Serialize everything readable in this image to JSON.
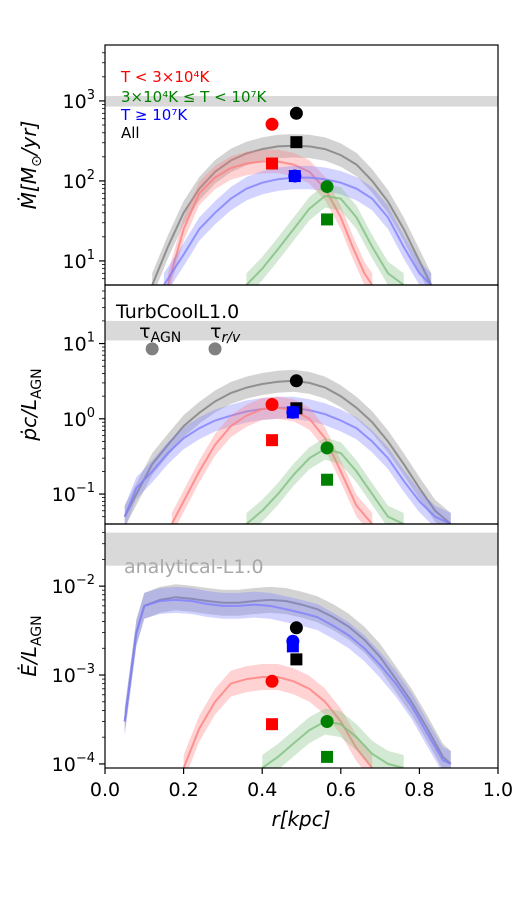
{
  "chart_data": {
    "type": "line",
    "shared_x": {
      "label": "r[kpc]",
      "lim": [
        0.0,
        1.0
      ],
      "ticks": [
        0.0,
        0.2,
        0.4,
        0.6,
        0.8,
        1.0
      ],
      "tick_labels": [
        "0.0",
        "0.2",
        "0.4",
        "0.6",
        "0.8",
        "1.0"
      ]
    },
    "colors": {
      "cold": "#ff0000",
      "warm": "#008000",
      "hot": "#0000ff",
      "all": "#000000",
      "band": "#d9d9d9",
      "marker_gray": "#808080"
    },
    "legend": {
      "placement": "top-left",
      "entries": [
        {
          "label": "T < 3×10⁴K",
          "color": "#ff0000"
        },
        {
          "label": "3×10⁴K ≤ T < 10⁷K",
          "color": "#008000"
        },
        {
          "label": "T ≥ 10⁷K",
          "color": "#0000ff"
        },
        {
          "label": "All",
          "color": "#000000"
        }
      ]
    },
    "panels": [
      {
        "ylabel": "Ṁ[M⊙/yr]",
        "yscale": "log",
        "ylim": [
          5,
          5000
        ],
        "ytick_labels": [
          {
            "base": "10",
            "exp": "1",
            "value": 10
          },
          {
            "base": "10",
            "exp": "2",
            "value": 100
          },
          {
            "base": "10",
            "exp": "3",
            "value": 1000
          }
        ],
        "band": [
          850,
          1150
        ],
        "series": [
          {
            "color": "#808080",
            "x": [
              0.12,
              0.16,
              0.2,
              0.24,
              0.28,
              0.32,
              0.36,
              0.4,
              0.44,
              0.48,
              0.52,
              0.56,
              0.6,
              0.64,
              0.68,
              0.72,
              0.76,
              0.8,
              0.83
            ],
            "y": [
              5,
              15,
              40,
              80,
              130,
              180,
              220,
              250,
              270,
              275,
              270,
              250,
              210,
              160,
              100,
              55,
              25,
              10,
              5
            ]
          },
          {
            "color": "#ff8080",
            "x": [
              0.16,
              0.2,
              0.24,
              0.28,
              0.32,
              0.36,
              0.4,
              0.44,
              0.48,
              0.52,
              0.56,
              0.6,
              0.63,
              0.66,
              0.68
            ],
            "y": [
              5,
              25,
              70,
              110,
              145,
              165,
              175,
              175,
              160,
              130,
              80,
              35,
              15,
              7,
              5
            ]
          },
          {
            "color": "#8080ff",
            "x": [
              0.15,
              0.2,
              0.24,
              0.28,
              0.32,
              0.36,
              0.4,
              0.44,
              0.48,
              0.52,
              0.56,
              0.6,
              0.64,
              0.68,
              0.72,
              0.76,
              0.8,
              0.83
            ],
            "y": [
              5,
              12,
              25,
              40,
              60,
              80,
              95,
              105,
              110,
              110,
              105,
              95,
              80,
              60,
              35,
              15,
              7,
              5
            ]
          },
          {
            "color": "#80c080",
            "x": [
              0.36,
              0.4,
              0.44,
              0.48,
              0.52,
              0.56,
              0.6,
              0.64,
              0.68,
              0.72,
              0.76
            ],
            "y": [
              5,
              8,
              14,
              25,
              45,
              65,
              60,
              35,
              15,
              7,
              5
            ]
          }
        ],
        "markers": [
          {
            "shape": "circle",
            "color": "#ff0000",
            "x": 0.425,
            "y": 510
          },
          {
            "shape": "square",
            "color": "#ff0000",
            "x": 0.425,
            "y": 165
          },
          {
            "shape": "circle",
            "color": "#000000",
            "x": 0.487,
            "y": 700
          },
          {
            "shape": "square",
            "color": "#000000",
            "x": 0.487,
            "y": 305
          },
          {
            "shape": "circle",
            "color": "#0000ff",
            "x": 0.483,
            "y": 115
          },
          {
            "shape": "square",
            "color": "#0000ff",
            "x": 0.483,
            "y": 115
          },
          {
            "shape": "circle",
            "color": "#008000",
            "x": 0.565,
            "y": 85
          },
          {
            "shape": "square",
            "color": "#008000",
            "x": 0.565,
            "y": 33
          }
        ]
      },
      {
        "ylabel": "ṗc/L_AGN",
        "yscale": "log",
        "ylim": [
          0.04,
          60
        ],
        "ytick_labels": [
          {
            "base": "10",
            "exp": "−1",
            "value": 0.1
          },
          {
            "base": "10",
            "exp": "0",
            "value": 1
          },
          {
            "base": "10",
            "exp": "1",
            "value": 10
          }
        ],
        "band": [
          11,
          20
        ],
        "annotation": "TurbCoolL1.0",
        "gray_markers": [
          {
            "label": "τ_AGN",
            "x": 0.12,
            "y": 8.5
          },
          {
            "label": "τ_r/v",
            "x": 0.28,
            "y": 8.5
          }
        ],
        "series": [
          {
            "color": "#808080",
            "x": [
              0.05,
              0.08,
              0.12,
              0.16,
              0.2,
              0.24,
              0.28,
              0.32,
              0.36,
              0.4,
              0.44,
              0.48,
              0.52,
              0.56,
              0.6,
              0.64,
              0.68,
              0.72,
              0.76,
              0.8,
              0.84,
              0.88
            ],
            "y": [
              0.05,
              0.1,
              0.25,
              0.45,
              0.8,
              1.2,
              1.7,
              2.2,
              2.6,
              2.9,
              3.1,
              3.2,
              3.0,
              2.6,
              2.0,
              1.4,
              0.9,
              0.5,
              0.25,
              0.12,
              0.06,
              0.04
            ]
          },
          {
            "color": "#8080ff",
            "x": [
              0.05,
              0.08,
              0.12,
              0.16,
              0.2,
              0.24,
              0.28,
              0.32,
              0.36,
              0.4,
              0.44,
              0.48,
              0.52,
              0.56,
              0.6,
              0.64,
              0.68,
              0.72,
              0.76,
              0.8,
              0.84,
              0.88
            ],
            "y": [
              0.05,
              0.12,
              0.2,
              0.35,
              0.55,
              0.75,
              0.95,
              1.1,
              1.25,
              1.35,
              1.4,
              1.4,
              1.3,
              1.15,
              0.95,
              0.75,
              0.5,
              0.3,
              0.15,
              0.08,
              0.05,
              0.04
            ]
          },
          {
            "color": "#ff8080",
            "x": [
              0.17,
              0.2,
              0.24,
              0.28,
              0.32,
              0.36,
              0.4,
              0.44,
              0.48,
              0.52,
              0.56,
              0.6,
              0.64,
              0.68
            ],
            "y": [
              0.04,
              0.08,
              0.2,
              0.45,
              0.8,
              1.1,
              1.35,
              1.4,
              1.3,
              1.0,
              0.55,
              0.2,
              0.07,
              0.04
            ]
          },
          {
            "color": "#80c080",
            "x": [
              0.36,
              0.4,
              0.44,
              0.48,
              0.52,
              0.56,
              0.6,
              0.64,
              0.68,
              0.72,
              0.76
            ],
            "y": [
              0.04,
              0.06,
              0.1,
              0.18,
              0.3,
              0.4,
              0.35,
              0.2,
              0.1,
              0.05,
              0.04
            ]
          }
        ],
        "markers": [
          {
            "shape": "circle",
            "color": "#ff0000",
            "x": 0.425,
            "y": 1.55
          },
          {
            "shape": "square",
            "color": "#ff0000",
            "x": 0.425,
            "y": 0.52
          },
          {
            "shape": "circle",
            "color": "#000000",
            "x": 0.487,
            "y": 3.2
          },
          {
            "shape": "square",
            "color": "#000000",
            "x": 0.487,
            "y": 1.38
          },
          {
            "shape": "circle",
            "color": "#0000ff",
            "x": 0.478,
            "y": 1.22
          },
          {
            "shape": "square",
            "color": "#0000ff",
            "x": 0.478,
            "y": 1.22
          },
          {
            "shape": "circle",
            "color": "#008000",
            "x": 0.565,
            "y": 0.41
          },
          {
            "shape": "square",
            "color": "#008000",
            "x": 0.565,
            "y": 0.155
          }
        ]
      },
      {
        "ylabel": "Ė/L_AGN",
        "yscale": "log",
        "ylim": [
          9e-05,
          0.05
        ],
        "ytick_labels": [
          {
            "base": "10",
            "exp": "−4",
            "value": 0.0001
          },
          {
            "base": "10",
            "exp": "−3",
            "value": 0.001
          },
          {
            "base": "10",
            "exp": "−2",
            "value": 0.01
          }
        ],
        "band": [
          0.017,
          0.04
        ],
        "annotation": "analytical-L1.0",
        "series": [
          {
            "color": "#808080",
            "x": [
              0.05,
              0.08,
              0.1,
              0.14,
              0.18,
              0.22,
              0.26,
              0.3,
              0.34,
              0.38,
              0.42,
              0.46,
              0.5,
              0.54,
              0.58,
              0.62,
              0.66,
              0.7,
              0.74,
              0.78,
              0.82,
              0.86,
              0.88
            ],
            "y": [
              0.0003,
              0.003,
              0.006,
              0.007,
              0.0075,
              0.0072,
              0.0068,
              0.0065,
              0.0065,
              0.0068,
              0.007,
              0.0068,
              0.0062,
              0.0055,
              0.0045,
              0.0035,
              0.0025,
              0.0016,
              0.0009,
              0.0005,
              0.00025,
              0.00012,
              0.0001
            ]
          },
          {
            "color": "#8080ff",
            "x": [
              0.05,
              0.08,
              0.1,
              0.14,
              0.18,
              0.22,
              0.26,
              0.3,
              0.34,
              0.38,
              0.42,
              0.46,
              0.5,
              0.54,
              0.58,
              0.62,
              0.66,
              0.7,
              0.74,
              0.78,
              0.82,
              0.86,
              0.88
            ],
            "y": [
              0.0003,
              0.003,
              0.006,
              0.0068,
              0.007,
              0.0068,
              0.0063,
              0.006,
              0.006,
              0.0062,
              0.006,
              0.0055,
              0.005,
              0.0045,
              0.0036,
              0.0028,
              0.002,
              0.0013,
              0.0008,
              0.00045,
              0.00022,
              0.00011,
              0.0001
            ]
          },
          {
            "color": "#ff8080",
            "x": [
              0.2,
              0.24,
              0.28,
              0.32,
              0.36,
              0.4,
              0.44,
              0.48,
              0.52,
              0.56,
              0.6,
              0.64,
              0.68
            ],
            "y": [
              9e-05,
              0.00025,
              0.0005,
              0.0008,
              0.0009,
              0.00095,
              0.00095,
              0.00085,
              0.0007,
              0.0005,
              0.0003,
              0.00015,
              9e-05
            ]
          },
          {
            "color": "#80c080",
            "x": [
              0.4,
              0.44,
              0.48,
              0.52,
              0.56,
              0.6,
              0.64,
              0.68,
              0.72,
              0.76
            ],
            "y": [
              9e-05,
              0.00012,
              0.00017,
              0.00024,
              0.0003,
              0.00028,
              0.0002,
              0.00013,
              0.0001,
              9e-05
            ]
          }
        ],
        "markers": [
          {
            "shape": "circle",
            "color": "#ff0000",
            "x": 0.425,
            "y": 0.00085
          },
          {
            "shape": "square",
            "color": "#ff0000",
            "x": 0.425,
            "y": 0.00028
          },
          {
            "shape": "circle",
            "color": "#000000",
            "x": 0.487,
            "y": 0.0034
          },
          {
            "shape": "square",
            "color": "#000000",
            "x": 0.487,
            "y": 0.0015
          },
          {
            "shape": "circle",
            "color": "#0000ff",
            "x": 0.478,
            "y": 0.0024
          },
          {
            "shape": "square",
            "color": "#0000ff",
            "x": 0.478,
            "y": 0.0021
          },
          {
            "shape": "circle",
            "color": "#008000",
            "x": 0.565,
            "y": 0.0003
          },
          {
            "shape": "square",
            "color": "#008000",
            "x": 0.565,
            "y": 0.00012
          }
        ]
      }
    ]
  }
}
